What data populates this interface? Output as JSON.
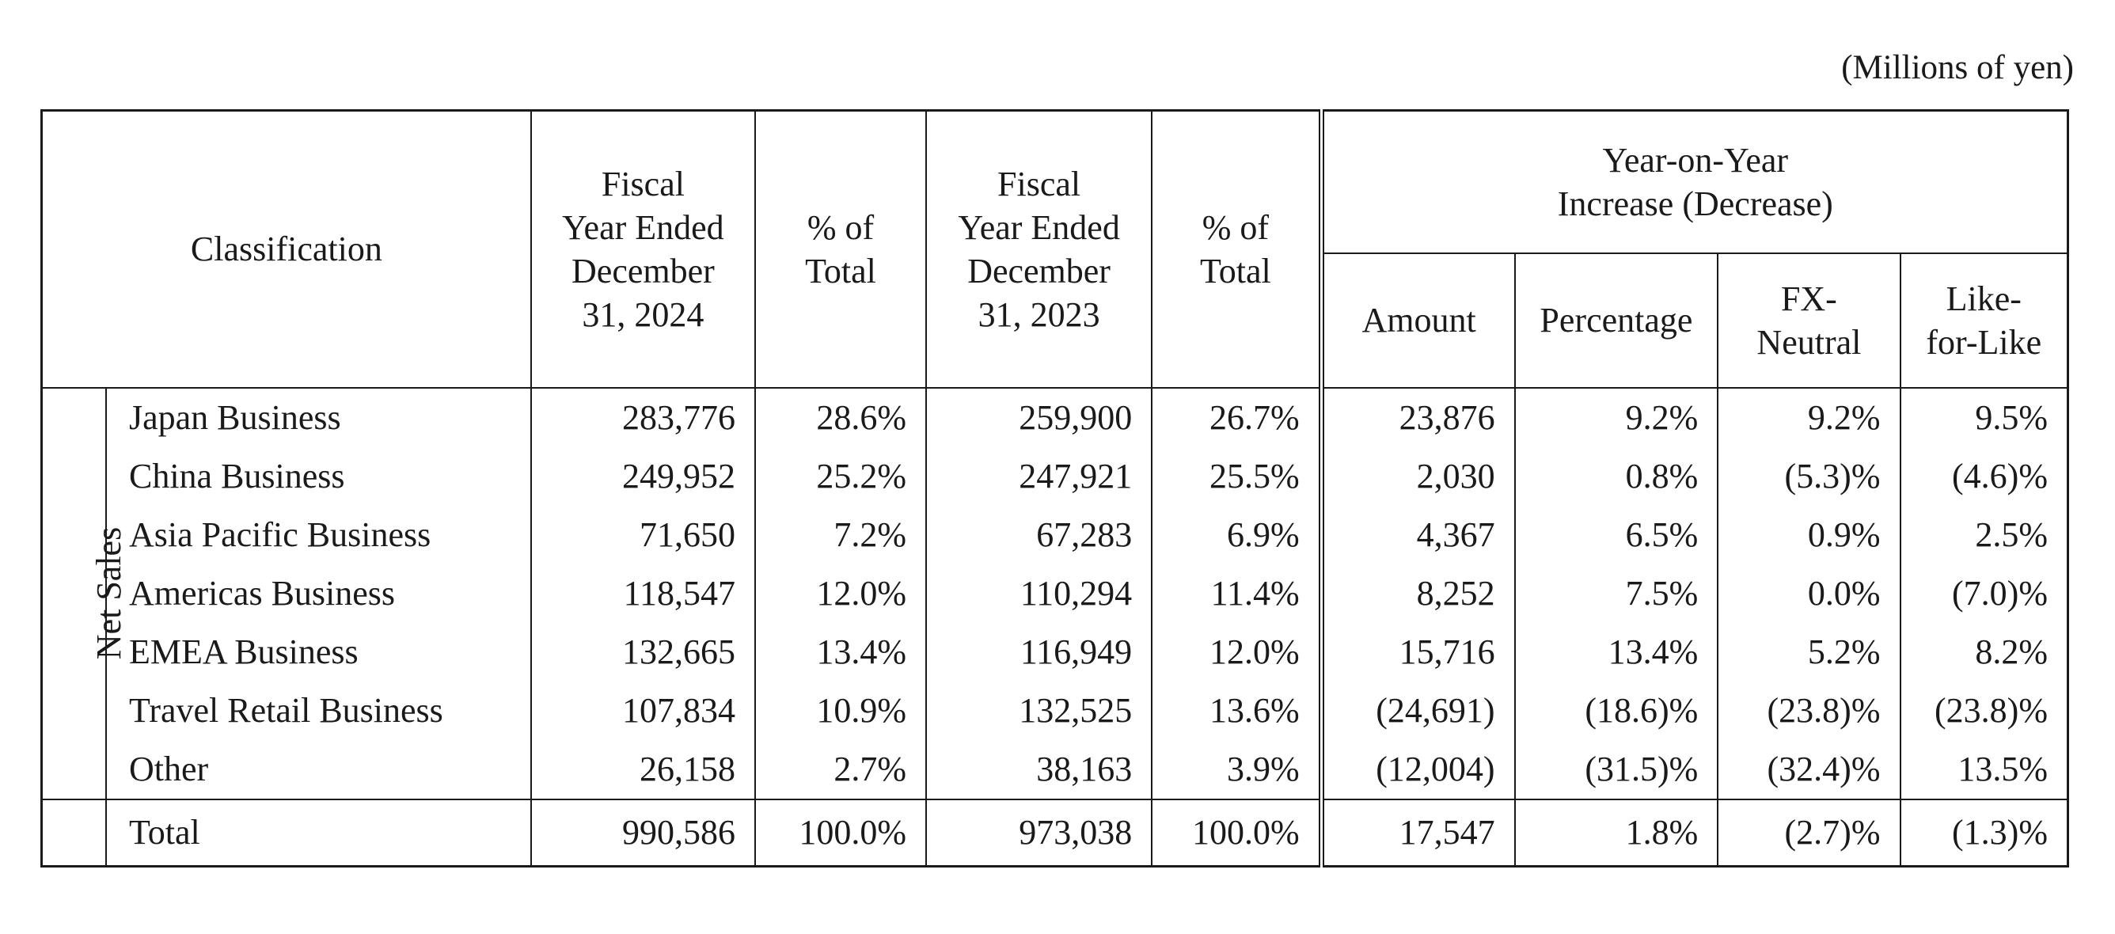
{
  "unit_note": "(Millions of yen)",
  "headers": {
    "classification": "Classification",
    "fy2024": [
      "Fiscal",
      "Year Ended",
      "December",
      "31, 2024"
    ],
    "pct_total_2024": [
      "% of",
      "Total"
    ],
    "fy2023": [
      "Fiscal",
      "Year Ended",
      "December",
      "31, 2023"
    ],
    "pct_total_2023": [
      "% of",
      "Total"
    ],
    "yoy": [
      "Year-on-Year",
      "Increase (Decrease)"
    ],
    "amount": "Amount",
    "percentage": "Percentage",
    "fx_neutral": [
      "FX-",
      "Neutral"
    ],
    "like_for_like": [
      "Like-",
      "for-Like"
    ]
  },
  "side_label": "Net Sales",
  "rows": [
    {
      "name": "Japan Business",
      "fy2024": "283,776",
      "pct2024": "28.6%",
      "fy2023": "259,900",
      "pct2023": "26.7%",
      "amount": "23,876",
      "percentage": "9.2%",
      "fx": "9.2%",
      "lfl": "9.5%"
    },
    {
      "name": "China Business",
      "fy2024": "249,952",
      "pct2024": "25.2%",
      "fy2023": "247,921",
      "pct2023": "25.5%",
      "amount": "2,030",
      "percentage": "0.8%",
      "fx": "(5.3)%",
      "lfl": "(4.6)%"
    },
    {
      "name": "Asia Pacific Business",
      "fy2024": "71,650",
      "pct2024": "7.2%",
      "fy2023": "67,283",
      "pct2023": "6.9%",
      "amount": "4,367",
      "percentage": "6.5%",
      "fx": "0.9%",
      "lfl": "2.5%"
    },
    {
      "name": "Americas Business",
      "fy2024": "118,547",
      "pct2024": "12.0%",
      "fy2023": "110,294",
      "pct2023": "11.4%",
      "amount": "8,252",
      "percentage": "7.5%",
      "fx": "0.0%",
      "lfl": "(7.0)%"
    },
    {
      "name": "EMEA Business",
      "fy2024": "132,665",
      "pct2024": "13.4%",
      "fy2023": "116,949",
      "pct2023": "12.0%",
      "amount": "15,716",
      "percentage": "13.4%",
      "fx": "5.2%",
      "lfl": "8.2%"
    },
    {
      "name": "Travel Retail Business",
      "fy2024": "107,834",
      "pct2024": "10.9%",
      "fy2023": "132,525",
      "pct2023": "13.6%",
      "amount": "(24,691)",
      "percentage": "(18.6)%",
      "fx": "(23.8)%",
      "lfl": "(23.8)%"
    },
    {
      "name": "Other",
      "fy2024": "26,158",
      "pct2024": "2.7%",
      "fy2023": "38,163",
      "pct2023": "3.9%",
      "amount": "(12,004)",
      "percentage": "(31.5)%",
      "fx": "(32.4)%",
      "lfl": "13.5%"
    }
  ],
  "total": {
    "name": "Total",
    "fy2024": "990,586",
    "pct2024": "100.0%",
    "fy2023": "973,038",
    "pct2023": "100.0%",
    "amount": "17,547",
    "percentage": "1.8%",
    "fx": "(2.7)%",
    "lfl": "(1.3)%"
  }
}
